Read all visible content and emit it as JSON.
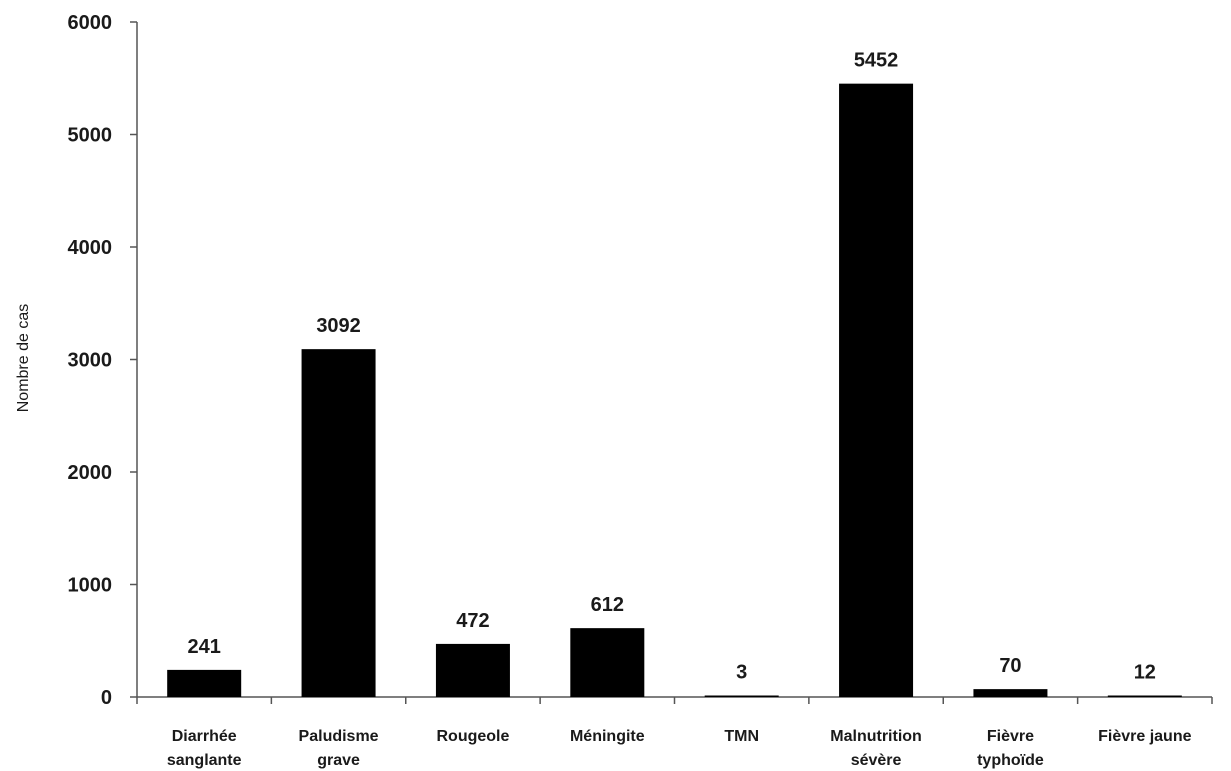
{
  "chart_data": {
    "type": "bar",
    "title": "",
    "xlabel": "",
    "ylabel": "Nombre de cas",
    "ylim": [
      0,
      6000
    ],
    "yticks": [
      0,
      1000,
      2000,
      3000,
      4000,
      5000,
      6000
    ],
    "grid": false,
    "legend": "none",
    "bar_color": "#000000",
    "categories": [
      [
        "Diarrhée",
        "sanglante"
      ],
      [
        "Paludisme",
        "grave"
      ],
      [
        "Rougeole"
      ],
      [
        "Méningite"
      ],
      [
        "TMN"
      ],
      [
        "Malnutrition",
        "sévère"
      ],
      [
        "Fièvre",
        "typhoïde"
      ],
      [
        "Fièvre jaune"
      ]
    ],
    "values": [
      241,
      3092,
      472,
      612,
      3,
      5452,
      70,
      12
    ],
    "data_labels": [
      "241",
      "3092",
      "472",
      "612",
      "3",
      "5452",
      "70",
      "12"
    ]
  }
}
